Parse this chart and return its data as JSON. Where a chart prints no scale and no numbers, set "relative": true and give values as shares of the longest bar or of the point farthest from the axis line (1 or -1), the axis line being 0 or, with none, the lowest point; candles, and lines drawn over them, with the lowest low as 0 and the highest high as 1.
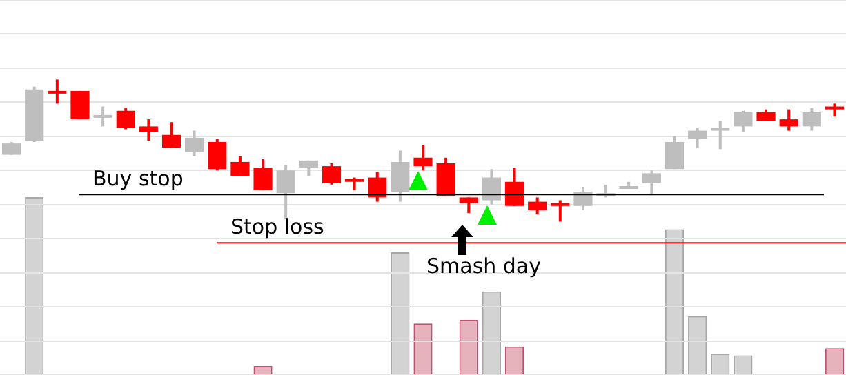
{
  "chart_data": [
    {
      "type": "candlestick",
      "relative": true,
      "grid": "y",
      "categories": [
        null,
        null,
        null,
        null,
        null,
        null,
        null,
        null,
        null,
        null,
        null,
        null,
        null,
        null,
        null,
        null,
        null,
        null,
        null,
        null,
        null,
        null,
        null,
        null,
        null,
        null,
        null,
        null,
        null,
        null,
        null,
        null,
        null,
        null,
        null,
        null,
        null
      ],
      "ohlc": [
        [
          0.47,
          0.56,
          0.47,
          0.55
        ],
        [
          0.57,
          0.95,
          0.56,
          0.93
        ],
        [
          0.92,
          1,
          0.83,
          0.91
        ],
        [
          0.92,
          0.92,
          0.72,
          0.72
        ],
        [
          0.74,
          0.81,
          0.67,
          0.75
        ],
        [
          0.78,
          0.8,
          0.65,
          0.66
        ],
        [
          0.67,
          0.72,
          0.57,
          0.63
        ],
        [
          0.61,
          0.7,
          0.52,
          0.52
        ],
        [
          0.49,
          0.64,
          0.46,
          0.59
        ],
        [
          0.56,
          0.58,
          0.36,
          0.37
        ],
        [
          0.42,
          0.46,
          0.32,
          0.32
        ],
        [
          0.38,
          0.44,
          0.22,
          0.22
        ],
        [
          0.2,
          0.4,
          0.02,
          0.36
        ],
        [
          0.38,
          0.43,
          0.32,
          0.43
        ],
        [
          0.39,
          0.41,
          0.26,
          0.27
        ],
        [
          0.3,
          0.31,
          0.22,
          0.28
        ],
        [
          0.31,
          0.35,
          0.14,
          0.17
        ],
        [
          0.21,
          0.5,
          0.14,
          0.42
        ],
        [
          0.45,
          0.54,
          0.36,
          0.39
        ],
        [
          0.41,
          0.45,
          0.18,
          0.18
        ],
        [
          0.17,
          0.17,
          0.06,
          0.13
        ],
        [
          0.15,
          0.37,
          0.12,
          0.31
        ],
        [
          0.28,
          0.38,
          0.11,
          0.11
        ],
        [
          0.14,
          0.17,
          0.05,
          0.08
        ],
        [
          0.13,
          0.15,
          0,
          0.11
        ],
        [
          0.11,
          0.24,
          0.08,
          0.21
        ],
        [
          0.19,
          0.26,
          0.17,
          0.2
        ],
        [
          0.23,
          0.28,
          0.23,
          0.25
        ],
        [
          0.27,
          0.36,
          0.19,
          0.34
        ],
        [
          0.37,
          0.6,
          0.37,
          0.56
        ],
        [
          0.58,
          0.66,
          0.52,
          0.64
        ],
        [
          0.64,
          0.71,
          0.51,
          0.66
        ],
        [
          0.67,
          0.78,
          0.63,
          0.77
        ],
        [
          0.77,
          0.79,
          0.71,
          0.71
        ],
        [
          0.72,
          0.79,
          0.64,
          0.67
        ],
        [
          0.67,
          0.8,
          0.64,
          0.77
        ],
        [
          0.81,
          0.83,
          0.74,
          0.79
        ]
      ],
      "colors": [
        "#bebebe",
        "#bebebe",
        "#ff0000",
        "#ff0000",
        "#bebebe",
        "#ff0000",
        "#ff0000",
        "#ff0000",
        "#bebebe",
        "#ff0000",
        "#ff0000",
        "#ff0000",
        "#bebebe",
        "#bebebe",
        "#ff0000",
        "#ff0000",
        "#ff0000",
        "#bebebe",
        "#ff0000",
        "#ff0000",
        "#ff0000",
        "#bebebe",
        "#ff0000",
        "#ff0000",
        "#ff0000",
        "#bebebe",
        "#bebebe",
        "#bebebe",
        "#bebebe",
        "#bebebe",
        "#bebebe",
        "#bebebe",
        "#bebebe",
        "#ff0000",
        "#ff0000",
        "#bebebe",
        "#ff0000"
      ],
      "ref_lines": [
        {
          "axis": "y",
          "value": 0.19,
          "label": "Buy stop",
          "color": "#000000"
        },
        {
          "axis": "y",
          "value": -0.15,
          "label": "Stop loss",
          "color": "#ff0000"
        }
      ],
      "annotations": [
        "Smash day"
      ]
    },
    {
      "type": "bar",
      "relative": true,
      "categories": [
        null,
        null,
        null,
        null,
        null,
        null,
        null,
        null,
        null,
        null,
        null,
        null,
        null,
        null,
        null,
        null,
        null,
        null,
        null,
        null,
        null,
        null,
        null,
        null,
        null,
        null,
        null,
        null,
        null,
        null,
        null,
        null,
        null,
        null,
        null,
        null,
        null
      ],
      "values": [
        null,
        1,
        null,
        null,
        null,
        null,
        null,
        null,
        null,
        null,
        null,
        0.05,
        null,
        null,
        null,
        null,
        null,
        0.69,
        0.29,
        null,
        0.31,
        0.47,
        0.16,
        null,
        null,
        null,
        null,
        null,
        null,
        0.82,
        0.33,
        0.12,
        0.11,
        null,
        null,
        null,
        0.15
      ],
      "colors": [
        "#d3d3d3",
        "#d3d3d3",
        "#e6b3bd",
        "#e6b3bd",
        "#d3d3d3",
        "#e6b3bd",
        "#e6b3bd",
        "#e6b3bd",
        "#d3d3d3",
        "#e6b3bd",
        "#e6b3bd",
        "#e6b3bd",
        "#d3d3d3",
        "#d3d3d3",
        "#e6b3bd",
        "#e6b3bd",
        "#e6b3bd",
        "#d3d3d3",
        "#e6b3bd",
        "#e6b3bd",
        "#e6b3bd",
        "#d3d3d3",
        "#e6b3bd",
        "#e6b3bd",
        "#e6b3bd",
        "#d3d3d3",
        "#d3d3d3",
        "#d3d3d3",
        "#d3d3d3",
        "#d3d3d3",
        "#d3d3d3",
        "#d3d3d3",
        "#d3d3d3",
        "#e6b3bd",
        "#e6b3bd",
        "#d3d3d3",
        "#e6b3bd"
      ]
    }
  ]
}
